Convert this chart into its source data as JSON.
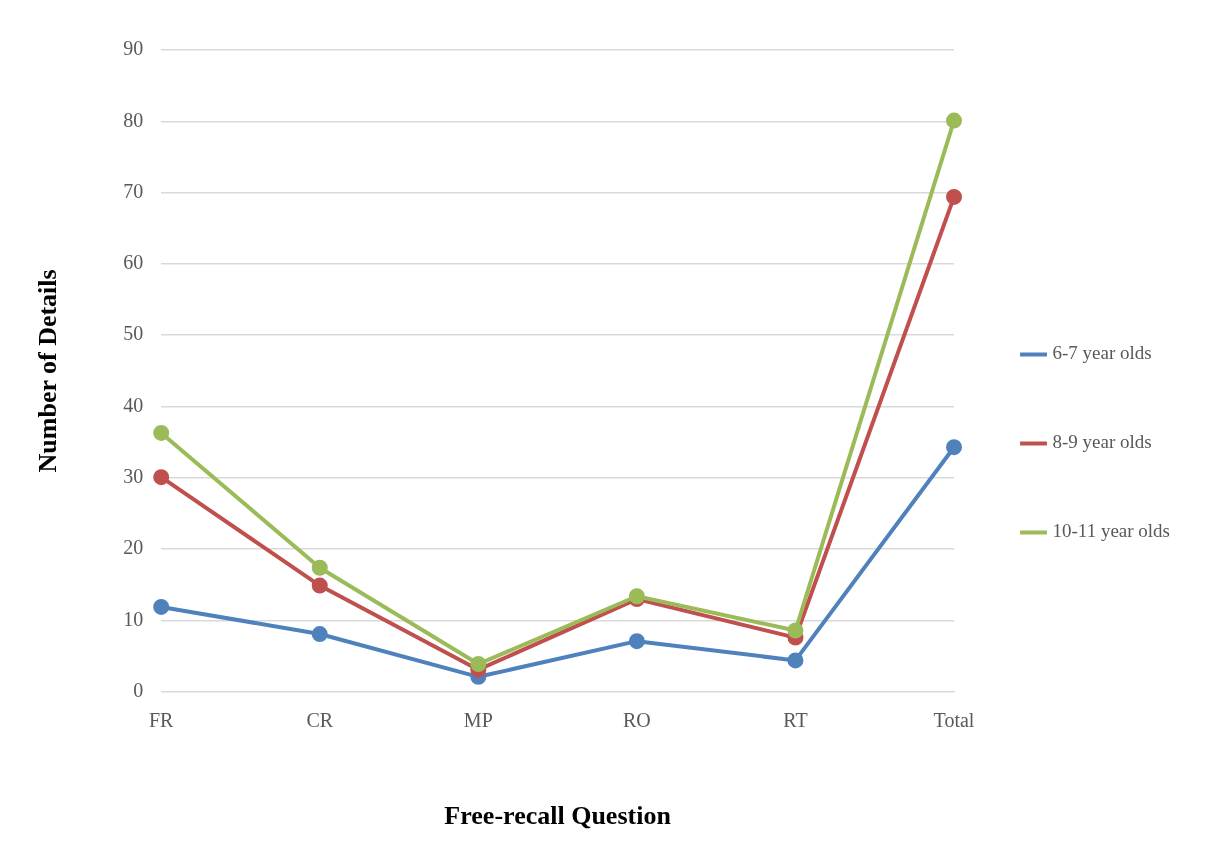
{
  "chart_data": {
    "type": "line",
    "xlabel": "Free-recall Question",
    "ylabel": "Number of Details",
    "categories": [
      "FR",
      "CR",
      "MP",
      "RO",
      "RT",
      "Total"
    ],
    "series": [
      {
        "name": "6-7 year olds",
        "color": "#4f81bd",
        "values": [
          11.9,
          8.1,
          2.1,
          7.1,
          4.4,
          34.3
        ]
      },
      {
        "name": "8-9 year olds",
        "color": "#c0504d",
        "values": [
          30.1,
          14.9,
          3.1,
          13,
          7.6,
          69.4
        ]
      },
      {
        "name": "10-11 year olds",
        "color": "#9bbb59",
        "values": [
          36.3,
          17.4,
          3.9,
          13.4,
          8.6,
          80.1
        ]
      }
    ],
    "ylim": [
      0,
      90
    ],
    "yticks": [
      0,
      10,
      20,
      30,
      40,
      50,
      60,
      70,
      80,
      90
    ],
    "grid": "y",
    "legend": "right",
    "marker": "circle",
    "line_style": "solid"
  }
}
